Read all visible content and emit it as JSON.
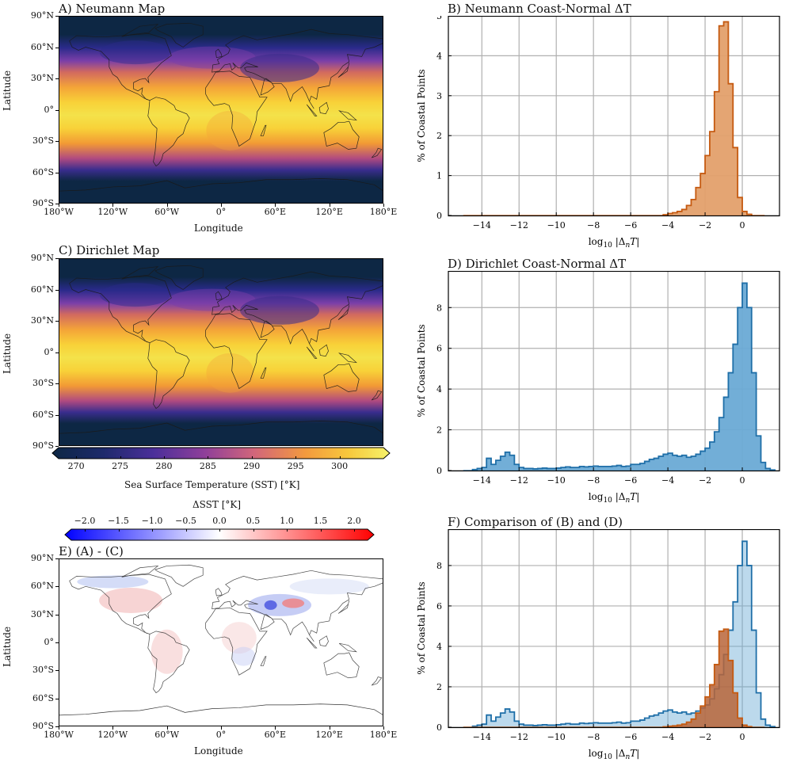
{
  "figure": {
    "panel_a_title": "A) Neumann Map",
    "panel_b_title": "B) Neumann Coast-Normal ΔT",
    "panel_c_title": "C) Dirichlet Map",
    "panel_d_title": "D) Dirichlet Coast-Normal ΔT",
    "panel_e_title": "E) (A) - (C)",
    "panel_f_title": "F) Comparison of (B) and (D)"
  },
  "colors": {
    "orange": "#c55a11",
    "orange_fill": "#e3a06c",
    "blue": "#1f6fa8",
    "blue_fill": "#6aaad5",
    "grid": "#b0b0b0"
  },
  "chart_data": [
    {
      "id": "A",
      "type": "heatmap",
      "title": "A) Neumann Map",
      "xlabel": "Longitude",
      "ylabel": "Latitude",
      "xticks": [
        "180°W",
        "120°W",
        "60°W",
        "0°",
        "60°E",
        "120°E",
        "180°E"
      ],
      "yticks": [
        "90°N",
        "60°N",
        "30°N",
        "0°",
        "30°S",
        "60°S",
        "90°S"
      ],
      "xlim": [
        -180,
        180
      ],
      "ylim": [
        -90,
        90
      ],
      "colormap": "plasma"
    },
    {
      "id": "B",
      "type": "bar",
      "title": "B) Neumann Coast-Normal ΔT",
      "xlabel": "log10 |Δn T|",
      "ylabel": "% of Coastal Points",
      "xlim": [
        -15.8,
        2
      ],
      "ylim": [
        0,
        5
      ],
      "xticks": [
        -14,
        -12,
        -10,
        -8,
        -6,
        -4,
        -2,
        0
      ],
      "yticks": [
        0,
        1,
        2,
        3,
        4,
        5
      ],
      "bin_width": 0.25,
      "series": [
        {
          "name": "Neumann",
          "bin_start": -4.25,
          "values": [
            0.02,
            0.05,
            0.07,
            0.1,
            0.15,
            0.25,
            0.4,
            0.7,
            1.05,
            1.5,
            2.1,
            3.1,
            4.75,
            4.85,
            3.3,
            1.7,
            0.45,
            0.1,
            0.03
          ]
        }
      ]
    },
    {
      "id": "C",
      "type": "heatmap",
      "title": "C) Dirichlet Map",
      "ylabel": "Latitude",
      "yticks": [
        "90°N",
        "60°N",
        "30°N",
        "0°",
        "30°S",
        "60°S",
        "90°S"
      ],
      "colormap": "plasma",
      "colorbar": {
        "label": "Sea Surface Temperature (SST) [°K]",
        "ticks": [
          270,
          275,
          280,
          285,
          290,
          295,
          300
        ],
        "range": [
          268,
          305
        ]
      }
    },
    {
      "id": "D",
      "type": "bar",
      "title": "D) Dirichlet Coast-Normal ΔT",
      "xlabel": "log10 |Δn T|",
      "ylabel": "% of Coastal Points",
      "xlim": [
        -15.8,
        2
      ],
      "ylim": [
        0,
        9.8
      ],
      "xticks": [
        -14,
        -12,
        -10,
        -8,
        -6,
        -4,
        -2,
        0
      ],
      "yticks": [
        0,
        2,
        4,
        6,
        8
      ],
      "bin_width": 0.25,
      "series": [
        {
          "name": "Dirichlet",
          "bin_start": -14.5,
          "values": [
            0.05,
            0.1,
            0.15,
            0.6,
            0.3,
            0.5,
            0.7,
            0.9,
            0.75,
            0.3,
            0.15,
            0.1,
            0.1,
            0.08,
            0.1,
            0.12,
            0.1,
            0.1,
            0.12,
            0.15,
            0.18,
            0.15,
            0.15,
            0.2,
            0.18,
            0.2,
            0.22,
            0.2,
            0.2,
            0.2,
            0.22,
            0.25,
            0.2,
            0.22,
            0.3,
            0.3,
            0.35,
            0.45,
            0.55,
            0.6,
            0.7,
            0.8,
            0.85,
            0.75,
            0.7,
            0.75,
            0.65,
            0.7,
            0.8,
            0.95,
            1.1,
            1.4,
            1.9,
            2.6,
            3.6,
            4.8,
            6.2,
            8.0,
            9.2,
            8.0,
            4.8,
            1.7,
            0.4,
            0.1,
            0.03
          ]
        }
      ]
    },
    {
      "id": "E",
      "type": "heatmap",
      "title": "E) (A) - (C)",
      "xlabel": "Longitude",
      "ylabel": "Latitude",
      "xticks": [
        "180°W",
        "120°W",
        "60°W",
        "0°",
        "60°E",
        "120°E",
        "180°E"
      ],
      "yticks": [
        "90°N",
        "60°N",
        "30°N",
        "0°",
        "30°S",
        "60°S",
        "90°S"
      ],
      "colormap": "bwr",
      "colorbar": {
        "label": "ΔSST [°K]",
        "ticks": [
          "−2.0",
          "−1.5",
          "−1.0",
          "−0.5",
          "0.0",
          "0.5",
          "1.0",
          "1.5",
          "2.0"
        ],
        "range": [
          -2.2,
          2.2
        ]
      }
    },
    {
      "id": "F",
      "type": "bar",
      "title": "F) Comparison of (B) and (D)",
      "xlabel": "log10 |Δn T|",
      "ylabel": "% of Coastal Points",
      "xlim": [
        -15.8,
        2
      ],
      "ylim": [
        0,
        9.8
      ],
      "xticks": [
        -14,
        -12,
        -10,
        -8,
        -6,
        -4,
        -2,
        0
      ],
      "yticks": [
        0,
        2,
        4,
        6,
        8
      ],
      "series_refs": [
        "Dirichlet",
        "Neumann"
      ]
    }
  ]
}
